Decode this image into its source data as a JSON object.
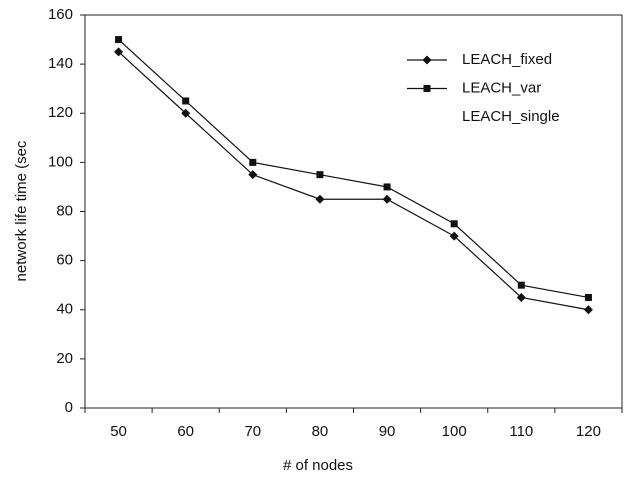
{
  "chart_data": {
    "type": "line",
    "x_label": "# of nodes",
    "y_label": "network life time (sec",
    "categories": [
      "50",
      "60",
      "70",
      "80",
      "90",
      "100",
      "110",
      "120"
    ],
    "series": [
      {
        "name": "LEACH_fixed",
        "color": "#111111",
        "marker": "diamond",
        "values": [
          145,
          120,
          95,
          85,
          85,
          70,
          45,
          40
        ]
      },
      {
        "name": "LEACH_var",
        "color": "#111111",
        "marker": "square",
        "values": [
          150,
          125,
          100,
          95,
          90,
          75,
          50,
          45
        ]
      },
      {
        "name": "LEACH_single",
        "color": "#ffffff",
        "marker": "none",
        "values": [
          null,
          null,
          null,
          null,
          null,
          null,
          null,
          null
        ]
      }
    ],
    "ylim": [
      0,
      160
    ],
    "yticks": [
      0,
      20,
      40,
      60,
      80,
      100,
      120,
      140,
      160
    ],
    "grid": false,
    "legend": "upper right"
  }
}
